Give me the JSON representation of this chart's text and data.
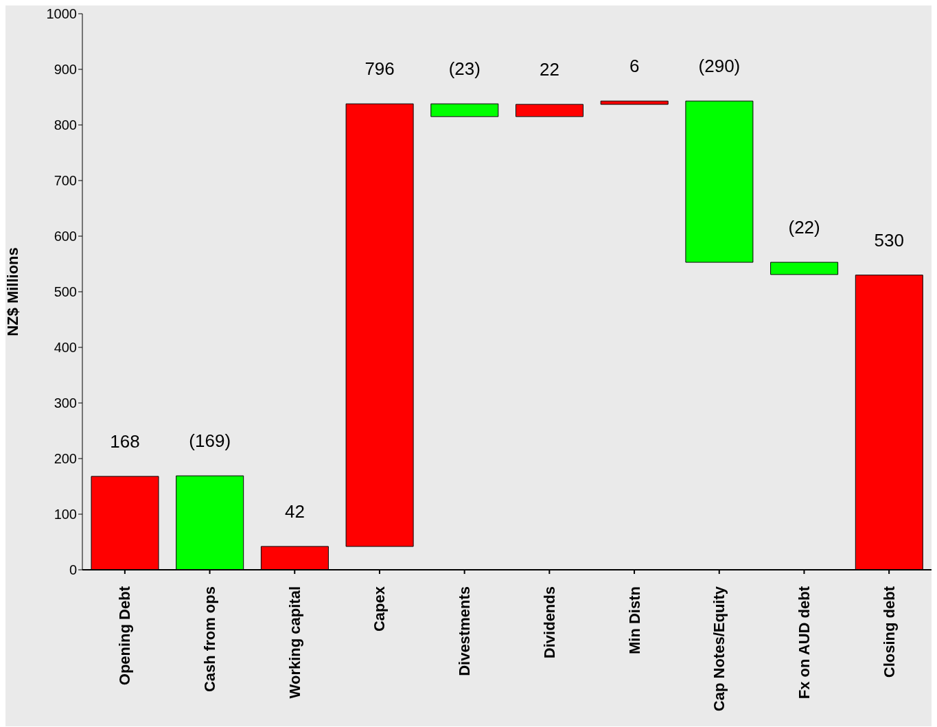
{
  "chart_data": {
    "type": "bar",
    "ylabel": "NZ$ Millions",
    "categories": [
      "Opening Debt",
      "Cash from ops",
      "Working capital",
      "Capex",
      "Divestments",
      "Dividends",
      "Min Distn",
      "Cap Notes/Equity",
      "Fx on AUD debt",
      "Closing debt"
    ],
    "values": [
      168,
      -169,
      42,
      796,
      -23,
      22,
      6,
      -290,
      -22,
      530
    ],
    "base": [
      0,
      169,
      0,
      42,
      838,
      815,
      837,
      843,
      553,
      0
    ],
    "colors": [
      "#ff0000",
      "#00ff00",
      "#ff0000",
      "#ff0000",
      "#00ff00",
      "#ff0000",
      "#ff0000",
      "#00ff00",
      "#00ff00",
      "#ff0000"
    ],
    "value_labels": [
      "168",
      "(169)",
      "42",
      "796",
      "(23)",
      "22",
      "6",
      "(290)",
      "(22)",
      "530"
    ],
    "ylim": [
      0,
      1000
    ],
    "yticks": [
      0,
      100,
      200,
      300,
      400,
      500,
      600,
      700,
      800,
      900,
      1000
    ]
  }
}
